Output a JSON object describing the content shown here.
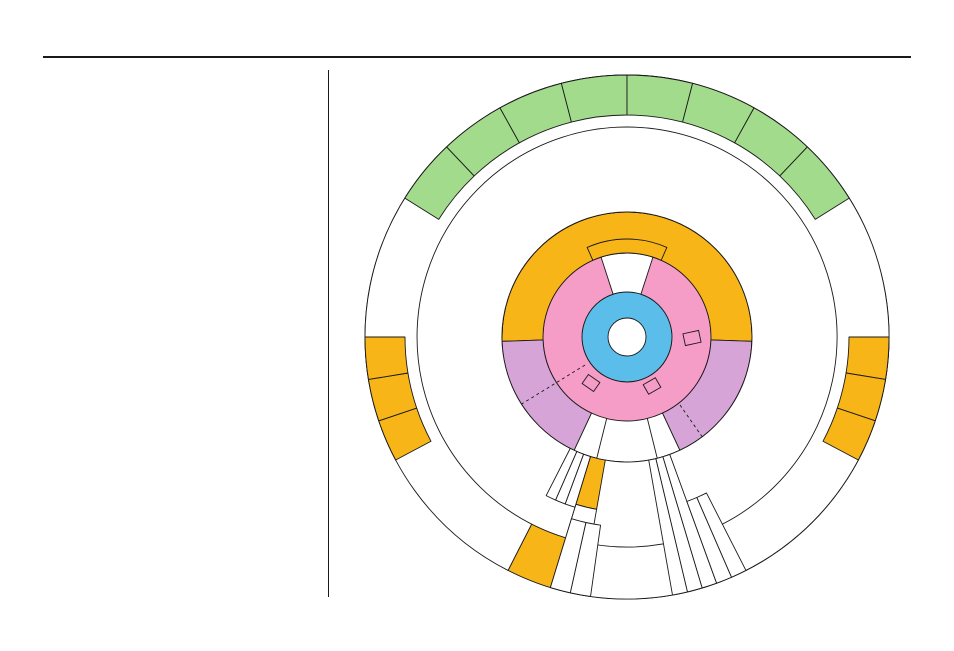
{
  "colors": {
    "page_background": "#ffffff",
    "rule": "#1a1a1a",
    "core": "#5bbde9",
    "level_1": "#f59dc6",
    "level_2_purple": "#d7a4d7",
    "orange": "#f8b517",
    "deep_orange": "#f6a74b",
    "green": "#a2db8b",
    "white": "#ffffff",
    "stroke": "#1a1a1a"
  },
  "diagram": {
    "type": "sunburst",
    "text_labels": [],
    "center": "white-hub",
    "rings": [
      {
        "level": 0,
        "color": "core",
        "segments": 1
      },
      {
        "level": 1,
        "color": "level_1",
        "segments": 1
      },
      {
        "level": 2,
        "color": "mixed",
        "segments": 4
      },
      {
        "level": 3,
        "color": "mixed",
        "segments": 6
      },
      {
        "level": 4,
        "color": "mixed",
        "segments": 26
      },
      {
        "level": 5,
        "color": "mixed",
        "segments": 26
      },
      {
        "level": 6,
        "color": "green",
        "segments": 8
      }
    ],
    "markers": 3,
    "dashed_connectors": 2
  }
}
